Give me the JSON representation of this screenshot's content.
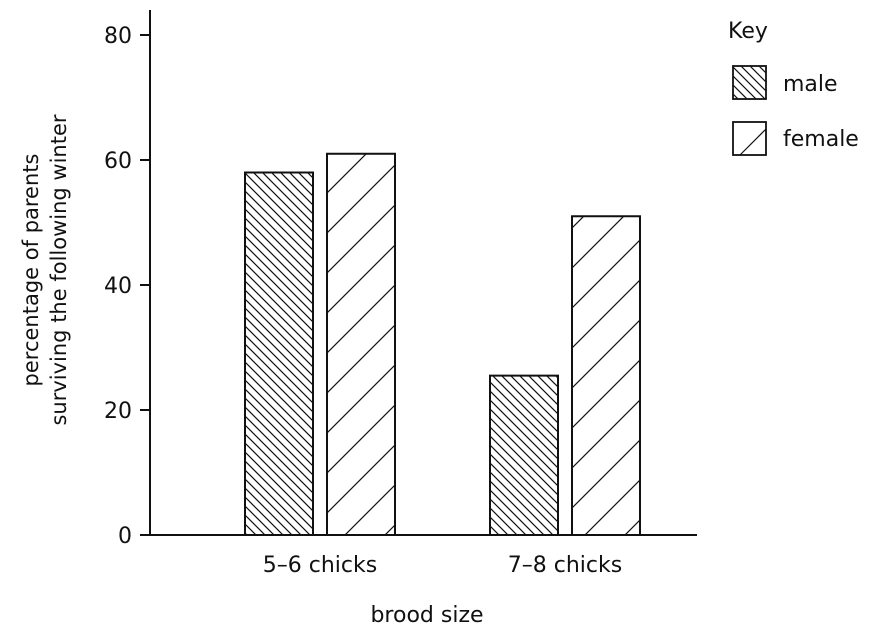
{
  "chart_data": {
    "type": "bar",
    "categories": [
      "5–6 chicks",
      "7–8 chicks"
    ],
    "series": [
      {
        "name": "male",
        "values": [
          58,
          25.5
        ],
        "pattern": "backslash-hatch"
      },
      {
        "name": "female",
        "values": [
          61,
          51
        ],
        "pattern": "forwardslash-hatch"
      }
    ],
    "xlabel": "brood size",
    "ylabel_lines": [
      "percentage of parents",
      "surviving the following winter"
    ],
    "ylim": [
      0,
      80
    ],
    "yticks": [
      0,
      20,
      40,
      60,
      80
    ],
    "grid": false,
    "legend": {
      "title": "Key",
      "placement": "top-right"
    },
    "colors": {
      "stroke": "#111111",
      "fill": "#ffffff"
    }
  }
}
